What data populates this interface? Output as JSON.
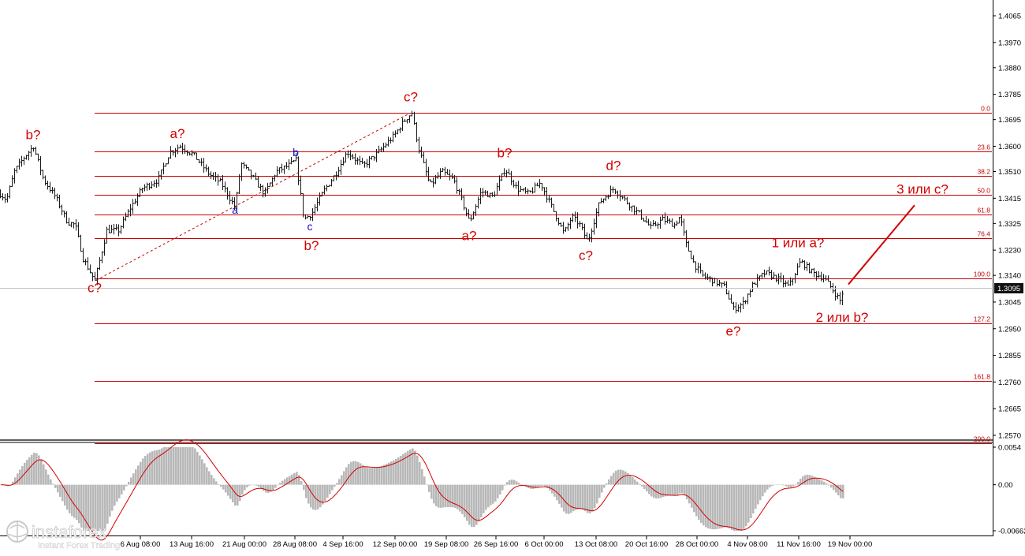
{
  "chart_data": [
    {
      "type": "candlestick",
      "title": "",
      "ylim": [
        1.2535,
        1.411
      ],
      "price_ticks": [
        "1.4065",
        "1.3970",
        "1.3880",
        "1.3785",
        "1.3695",
        "1.3600",
        "1.3510",
        "1.3415",
        "1.3325",
        "1.3230",
        "1.3140",
        "1.3045",
        "1.2950",
        "1.2855",
        "1.2760",
        "1.2665",
        "1.2570"
      ],
      "current_price": "1.3095",
      "date_ticks": [
        "6 Aug 08:00",
        "13 Aug 16:00",
        "21 Aug 00:00",
        "28 Aug 08:00",
        "4 Sep 16:00",
        "12 Sep 00:00",
        "19 Sep 08:00",
        "26 Sep 16:00",
        "6 Oct 00:00",
        "13 Oct 08:00",
        "20 Oct 16:00",
        "28 Oct 00:00",
        "4 Nov 08:00",
        "11 Nov 16:00",
        "19 Nov 00:00"
      ],
      "fibonacci_levels": [
        {
          "label": "0.0",
          "price": 1.3718
        },
        {
          "label": "23.6",
          "price": 1.3582
        },
        {
          "label": "38.2",
          "price": 1.3495
        },
        {
          "label": "50.0",
          "price": 1.3426
        },
        {
          "label": "61.8",
          "price": 1.3357
        },
        {
          "label": "76.4",
          "price": 1.3272
        },
        {
          "label": "100.0",
          "price": 1.3128
        },
        {
          "label": "127.2",
          "price": 1.2968
        },
        {
          "label": "161.8",
          "price": 1.2765
        },
        {
          "label": "200.0",
          "price": 1.2541
        }
      ],
      "price_path": [
        [
          0,
          1.343
        ],
        [
          8,
          1.341
        ],
        [
          18,
          1.351
        ],
        [
          30,
          1.356
        ],
        [
          42,
          1.36
        ],
        [
          55,
          1.348
        ],
        [
          70,
          1.342
        ],
        [
          85,
          1.333
        ],
        [
          95,
          1.332
        ],
        [
          105,
          1.32
        ],
        [
          120,
          1.312
        ],
        [
          135,
          1.33
        ],
        [
          150,
          1.33
        ],
        [
          165,
          1.338
        ],
        [
          180,
          1.345
        ],
        [
          200,
          1.348
        ],
        [
          215,
          1.358
        ],
        [
          228,
          1.36
        ],
        [
          245,
          1.357
        ],
        [
          265,
          1.35
        ],
        [
          280,
          1.347
        ],
        [
          298,
          1.338
        ],
        [
          305,
          1.354
        ],
        [
          320,
          1.349
        ],
        [
          335,
          1.343
        ],
        [
          350,
          1.351
        ],
        [
          365,
          1.353
        ],
        [
          375,
          1.355
        ],
        [
          385,
          1.334
        ],
        [
          395,
          1.336
        ],
        [
          410,
          1.344
        ],
        [
          425,
          1.35
        ],
        [
          440,
          1.358
        ],
        [
          460,
          1.353
        ],
        [
          480,
          1.358
        ],
        [
          500,
          1.364
        ],
        [
          512,
          1.369
        ],
        [
          522,
          1.372
        ],
        [
          530,
          1.36
        ],
        [
          545,
          1.346
        ],
        [
          560,
          1.351
        ],
        [
          575,
          1.348
        ],
        [
          585,
          1.341
        ],
        [
          595,
          1.333
        ],
        [
          610,
          1.344
        ],
        [
          625,
          1.342
        ],
        [
          640,
          1.352
        ],
        [
          655,
          1.345
        ],
        [
          670,
          1.343
        ],
        [
          685,
          1.347
        ],
        [
          700,
          1.338
        ],
        [
          715,
          1.329
        ],
        [
          725,
          1.335
        ],
        [
          735,
          1.332
        ],
        [
          745,
          1.326
        ],
        [
          760,
          1.34
        ],
        [
          778,
          1.345
        ],
        [
          795,
          1.34
        ],
        [
          810,
          1.336
        ],
        [
          825,
          1.331
        ],
        [
          840,
          1.334
        ],
        [
          855,
          1.332
        ],
        [
          862,
          1.335
        ],
        [
          870,
          1.325
        ],
        [
          880,
          1.318
        ],
        [
          890,
          1.314
        ],
        [
          905,
          1.312
        ],
        [
          918,
          1.31
        ],
        [
          930,
          1.302
        ],
        [
          942,
          1.304
        ],
        [
          955,
          1.311
        ],
        [
          970,
          1.315
        ],
        [
          985,
          1.313
        ],
        [
          1000,
          1.31
        ],
        [
          1015,
          1.319
        ],
        [
          1030,
          1.315
        ],
        [
          1045,
          1.313
        ],
        [
          1058,
          1.308
        ],
        [
          1065,
          1.305
        ],
        [
          1070,
          1.3095
        ]
      ],
      "wave_labels": [
        {
          "text": "b?",
          "price": 1.3625,
          "bar": 42,
          "color": "red"
        },
        {
          "text": "c?",
          "price": 1.308,
          "bar": 120,
          "color": "red"
        },
        {
          "text": "a?",
          "price": 1.363,
          "bar": 225,
          "color": "red"
        },
        {
          "text": "a",
          "price": 1.336,
          "bar": 298,
          "color": "blue"
        },
        {
          "text": "b",
          "price": 1.3565,
          "bar": 375,
          "color": "blue"
        },
        {
          "text": "c",
          "price": 1.33,
          "bar": 393,
          "color": "blue"
        },
        {
          "text": "b?",
          "price": 1.323,
          "bar": 395,
          "color": "red"
        },
        {
          "text": "c?",
          "price": 1.376,
          "bar": 521,
          "color": "red"
        },
        {
          "text": "a?",
          "price": 1.3265,
          "bar": 595,
          "color": "red"
        },
        {
          "text": "b?",
          "price": 1.356,
          "bar": 640,
          "color": "red"
        },
        {
          "text": "c?",
          "price": 1.3195,
          "bar": 743,
          "color": "red"
        },
        {
          "text": "d?",
          "price": 1.3515,
          "bar": 778,
          "color": "red"
        },
        {
          "text": "e?",
          "price": 1.2925,
          "bar": 930,
          "color": "red"
        },
        {
          "text": "1 или a?",
          "price": 1.324,
          "bar": 1012,
          "color": "red"
        },
        {
          "text": "2 или b?",
          "price": 1.2975,
          "bar": 1068,
          "color": "red"
        },
        {
          "text": "3 или с?",
          "price": 1.3432,
          "bar": 1170,
          "color": "red"
        }
      ],
      "forecast_line": {
        "from": [
          1076,
          1.3108
        ],
        "to": [
          1160,
          1.339
        ]
      },
      "trend_line": {
        "from": [
          122,
          1.3123
        ],
        "to": [
          520,
          1.3718
        ]
      }
    },
    {
      "type": "histogram+line",
      "title": "",
      "ylim": [
        -0.00662,
        0.0054
      ],
      "y_ticks": [
        "0.0054",
        "0.00",
        "-0.00662"
      ],
      "histogram_color": "#b8b8b8",
      "signal_color": "#d40000"
    }
  ],
  "colors": {
    "fib_lines": "#c80000",
    "bars": "#1a1a1a",
    "wave_red": "#d40000",
    "wave_blue": "#1010c8",
    "price_tag_bg": "#111111"
  },
  "logo": {
    "brand": "instaforex",
    "tagline": "Instant Forex Trading"
  }
}
